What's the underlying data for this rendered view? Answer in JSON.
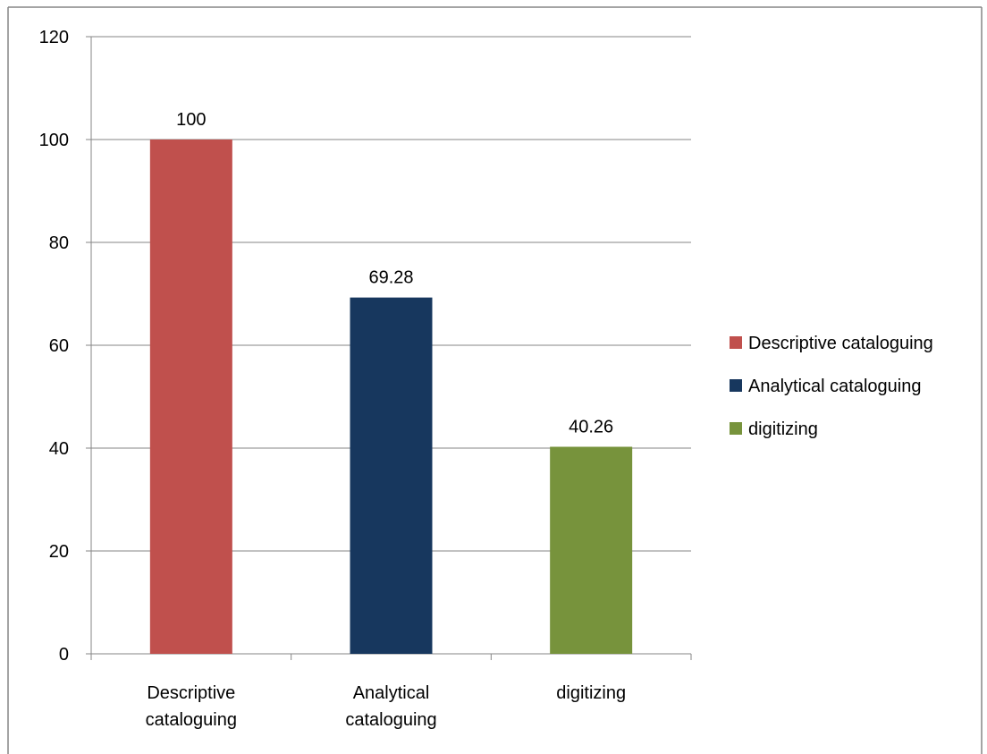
{
  "chart_data": {
    "type": "bar",
    "categories": [
      "Descriptive cataloguing",
      "Analytical cataloguing",
      "digitizing"
    ],
    "category_label_lines": [
      [
        "Descriptive",
        "cataloguing"
      ],
      [
        "Analytical",
        "cataloguing"
      ],
      [
        "digitizing"
      ]
    ],
    "values": [
      100,
      69.28,
      40.26
    ],
    "data_labels": [
      "100",
      "69.28",
      "40.26"
    ],
    "colors": [
      "#C0504D",
      "#17375E",
      "#77933C"
    ],
    "ylim": [
      0,
      120
    ],
    "yticks": [
      0,
      20,
      40,
      60,
      80,
      100,
      120
    ],
    "grid": true,
    "legend": {
      "placement": "right",
      "entries": [
        "Descriptive cataloguing",
        "Analytical cataloguing",
        "digitizing"
      ]
    },
    "title": "",
    "xlabel": "",
    "ylabel": ""
  }
}
